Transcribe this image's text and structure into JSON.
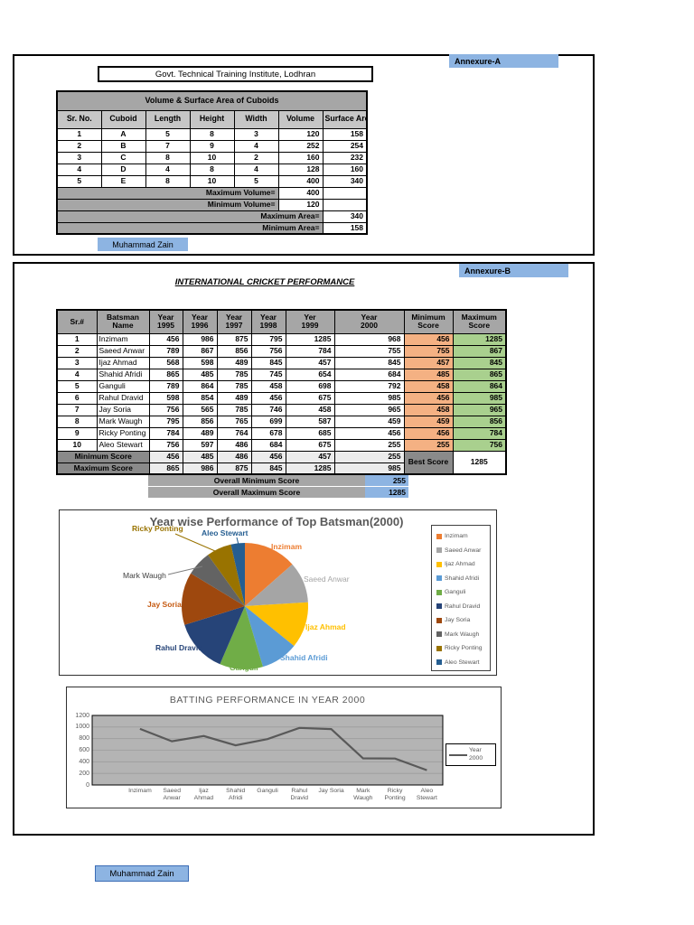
{
  "annexure_a": {
    "tag": "Annexure-A",
    "institute_title": "Govt. Technical Training Institute, Lodhran",
    "signature": "Muhammad Zain",
    "table": {
      "title": "Volume & Surface Area of Cuboids",
      "headers": [
        "Sr. No.",
        "Cuboid",
        "Length",
        "Height",
        "Width",
        "Volume",
        "Surface Area"
      ],
      "rows": [
        [
          1,
          "A",
          5,
          8,
          3,
          120,
          158
        ],
        [
          2,
          "B",
          7,
          9,
          4,
          252,
          254
        ],
        [
          3,
          "C",
          8,
          10,
          2,
          160,
          232
        ],
        [
          4,
          "D",
          4,
          8,
          4,
          128,
          160
        ],
        [
          5,
          "E",
          8,
          10,
          5,
          400,
          340
        ]
      ],
      "summary": {
        "max_volume_label": "Maximum Volume=",
        "max_volume": "400",
        "min_volume_label": "Minimum Volume=",
        "min_volume": "120",
        "max_area_label": "Maximum Area=",
        "max_area": "340",
        "min_area_label": "Minimum Area=",
        "min_area": "158"
      }
    }
  },
  "annexure_b": {
    "tag": "Annexure-B",
    "title": "INTERNATIONAL CRICKET PERFORMANCE",
    "signature": "Muhammad Zain",
    "table": {
      "headers": [
        "Sr.#",
        "Batsman\nName",
        "Year\n1995",
        "Year\n1996",
        "Year\n1997",
        "Year\n1998",
        "Yer\n1999",
        "Year\n2000",
        "Minimum\nScore",
        "Maximum\nScore"
      ],
      "rows": [
        [
          1,
          "Inzimam",
          456,
          986,
          875,
          795,
          1285,
          968,
          456,
          1285
        ],
        [
          2,
          "Saeed Anwar",
          789,
          867,
          856,
          756,
          784,
          755,
          755,
          867
        ],
        [
          3,
          "Ijaz Ahmad",
          568,
          598,
          489,
          845,
          457,
          845,
          457,
          845
        ],
        [
          4,
          "Shahid Afridi",
          865,
          485,
          785,
          745,
          654,
          684,
          485,
          865
        ],
        [
          5,
          "Ganguli",
          789,
          864,
          785,
          458,
          698,
          792,
          458,
          864
        ],
        [
          6,
          "Rahul Dravid",
          598,
          854,
          489,
          456,
          675,
          985,
          456,
          985
        ],
        [
          7,
          "Jay Soria",
          756,
          565,
          785,
          746,
          458,
          965,
          458,
          965
        ],
        [
          8,
          "Mark Waugh",
          795,
          856,
          765,
          699,
          587,
          459,
          459,
          856
        ],
        [
          9,
          "Ricky Ponting",
          784,
          489,
          764,
          678,
          685,
          456,
          456,
          784
        ],
        [
          10,
          "Aleo Stewart",
          756,
          597,
          486,
          684,
          675,
          255,
          255,
          756
        ]
      ],
      "min_row_label": "Minimum Score",
      "min_row": [
        456,
        485,
        486,
        456,
        457,
        255
      ],
      "max_row_label": "Maximum Score",
      "max_row": [
        865,
        986,
        875,
        845,
        1285,
        985
      ],
      "best_score_label": "Best Score",
      "best_score": "1285",
      "overall_min_label": "Overall Minimum Score",
      "overall_min": "255",
      "overall_max_label": "Overall Maximum Score",
      "overall_max": "1285"
    }
  },
  "chart_data": [
    {
      "type": "pie",
      "title": "Year wise Performance of Top Batsman(2000)",
      "labels": [
        "Inzimam",
        "Saeed Anwar",
        "Ijaz Ahmad",
        "Shahid Afridi",
        "Ganguli",
        "Rahul Dravid",
        "Jay Soria",
        "Mark Waugh",
        "Ricky Ponting",
        "Aleo Stewart"
      ],
      "values": [
        968,
        755,
        845,
        684,
        792,
        985,
        965,
        459,
        456,
        255
      ],
      "colors": [
        "#ED7D31",
        "#A5A5A5",
        "#FFC000",
        "#5B9BD5",
        "#70AD47",
        "#264478",
        "#9E480E",
        "#636363",
        "#997300",
        "#255E91"
      ],
      "label_colors": [
        "#ED7D31",
        "#A5A5A5",
        "#FFC000",
        "#5B9BD5",
        "#70AD47",
        "#264478",
        "#C55A11",
        "#404040",
        "#997300",
        "#255E91"
      ],
      "start_angle": 0,
      "direction": "clockwise",
      "legend_position": "right"
    },
    {
      "type": "line",
      "title": "BATTING PERFORMANCE IN YEAR 2000",
      "categories": [
        "Inzimam",
        "Saeed\nAnwar",
        "Ijaz\nAhmad",
        "Shahid\nAfridi",
        "Ganguli",
        "Rahul\nDravid",
        "Jay Soria",
        "Mark\nWaugh",
        "Ricky\nPonting",
        "Aleo\nStewart"
      ],
      "series": [
        {
          "name": "Year 2000",
          "values": [
            968,
            755,
            845,
            684,
            792,
            985,
            965,
            459,
            456,
            255
          ]
        }
      ],
      "ylabel_ticks": [
        1200,
        1000,
        800,
        600,
        400,
        200,
        0
      ],
      "ylim": [
        0,
        1200
      ],
      "grid": true,
      "plot_bg": "#B4B4B4",
      "grid_color": "#9C9C9C",
      "line_color": "#595959",
      "legend_position": "right"
    }
  ],
  "colors": {
    "annexure_chip": "#8DB4E2",
    "table_title_gray": "#A6A6A6",
    "column_header_gray": "#C6C6C6",
    "summary_label_dark_gray": "#8A8A8A",
    "summary_value_gray": "#ECECEC",
    "min_score_cell_orange": "#F4B183",
    "max_score_cell_green": "#A9D08E",
    "overall_value_blue": "#8DB4E2"
  }
}
